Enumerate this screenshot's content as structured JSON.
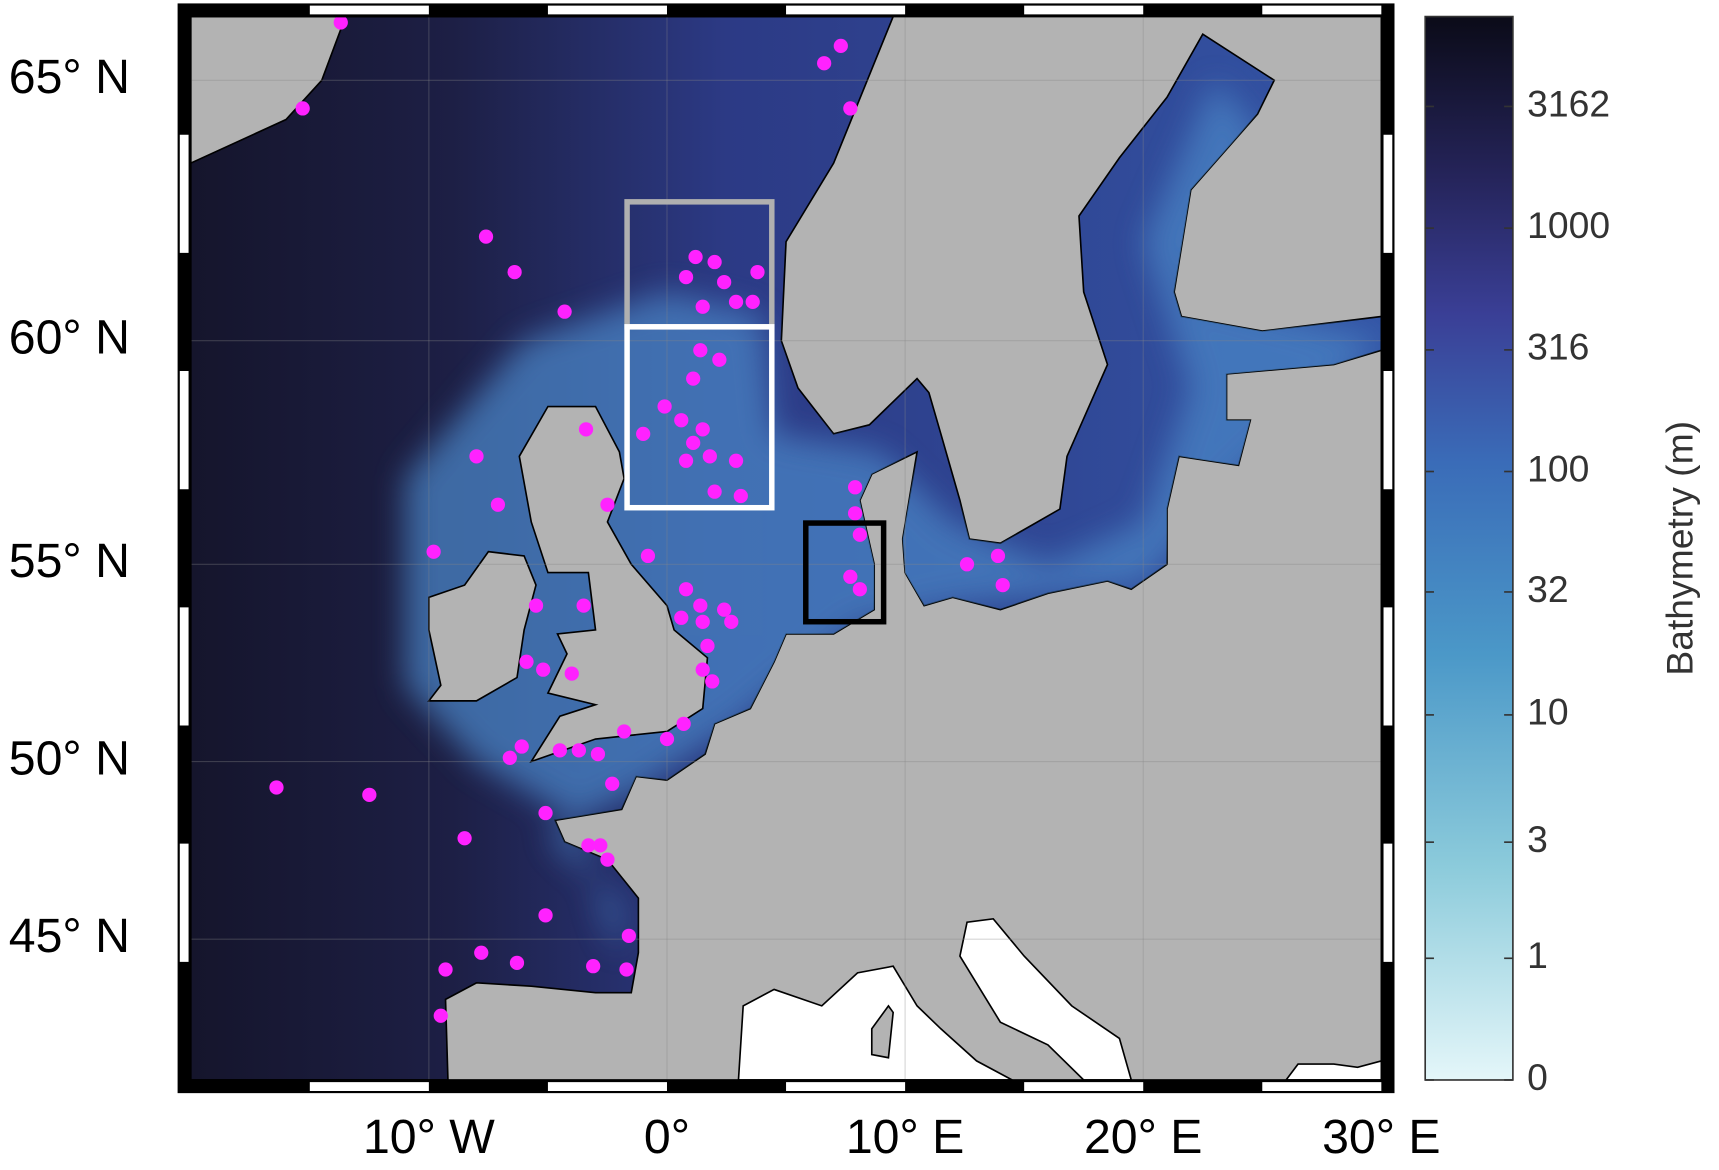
{
  "chart_data": {
    "type": "scatter",
    "projection": "mercator",
    "xlim": [
      -20,
      30
    ],
    "ylim": [
      40.7,
      66.1
    ],
    "xticks": [
      {
        "value": -10,
        "label": "10° W"
      },
      {
        "value": 0,
        "label": "0°"
      },
      {
        "value": 10,
        "label": "10° E"
      },
      {
        "value": 20,
        "label": "20° E"
      },
      {
        "value": 30,
        "label": "30° E"
      }
    ],
    "yticks": [
      {
        "value": 45,
        "label": "45° N"
      },
      {
        "value": 50,
        "label": "50° N"
      },
      {
        "value": 55,
        "label": "55° N"
      },
      {
        "value": 60,
        "label": "60° N"
      },
      {
        "value": 65,
        "label": "65° N"
      }
    ],
    "grid": true,
    "color": "#ff22ff",
    "x": [
      -13.7,
      -15.3,
      7.3,
      6.6,
      7.7,
      -7.6,
      -6.4,
      -4.3,
      1.2,
      2.0,
      2.4,
      2.9,
      3.6,
      3.8,
      0.8,
      1.5,
      1.4,
      2.2,
      1.1,
      -0.1,
      0.6,
      1.5,
      -1.0,
      1.1,
      1.8,
      0.8,
      2.9,
      2.0,
      3.1,
      -3.4,
      -8.0,
      -7.1,
      -2.5,
      -0.8,
      -9.8,
      0.8,
      1.4,
      2.4,
      0.6,
      2.7,
      1.5,
      1.7,
      1.5,
      1.9,
      7.9,
      7.9,
      8.1,
      7.7,
      8.1,
      12.6,
      13.9,
      14.1,
      -5.5,
      -3.5,
      -5.9,
      -5.2,
      -4.0,
      0.7,
      0.0,
      -1.8,
      -3.7,
      -4.5,
      -2.9,
      -6.6,
      -6.1,
      -2.3,
      -5.1,
      -3.3,
      -2.8,
      -2.5,
      -16.4,
      -12.5,
      -8.5,
      -5.1,
      -1.6,
      -7.8,
      -6.3,
      -3.1,
      -1.7,
      -9.3,
      -9.5
    ],
    "y": [
      66.0,
      64.5,
      65.6,
      65.3,
      64.5,
      62.1,
      61.4,
      60.6,
      61.7,
      61.6,
      61.2,
      60.8,
      60.8,
      61.4,
      61.3,
      60.7,
      59.8,
      59.6,
      59.2,
      58.6,
      58.3,
      58.1,
      58.0,
      57.8,
      57.5,
      57.4,
      57.4,
      56.7,
      56.6,
      58.1,
      57.5,
      56.4,
      56.4,
      55.2,
      55.3,
      54.4,
      54.0,
      53.9,
      53.7,
      53.6,
      53.6,
      53.0,
      52.4,
      52.1,
      56.8,
      56.2,
      55.7,
      54.7,
      54.4,
      55.0,
      55.2,
      54.5,
      54.0,
      54.0,
      52.6,
      52.4,
      52.3,
      51.0,
      50.6,
      50.8,
      50.3,
      50.3,
      50.2,
      50.1,
      50.4,
      49.4,
      48.6,
      47.7,
      47.7,
      47.3,
      49.3,
      49.1,
      47.9,
      45.7,
      45.1,
      44.6,
      44.3,
      44.2,
      44.1,
      44.1,
      42.7
    ],
    "colorbar": {
      "label": "Bathymetry (m)",
      "scale": "symlog",
      "lim": [
        0,
        7400
      ],
      "ticks": [
        0,
        1,
        3,
        10,
        32,
        100,
        316,
        1000,
        3162
      ]
    }
  }
}
